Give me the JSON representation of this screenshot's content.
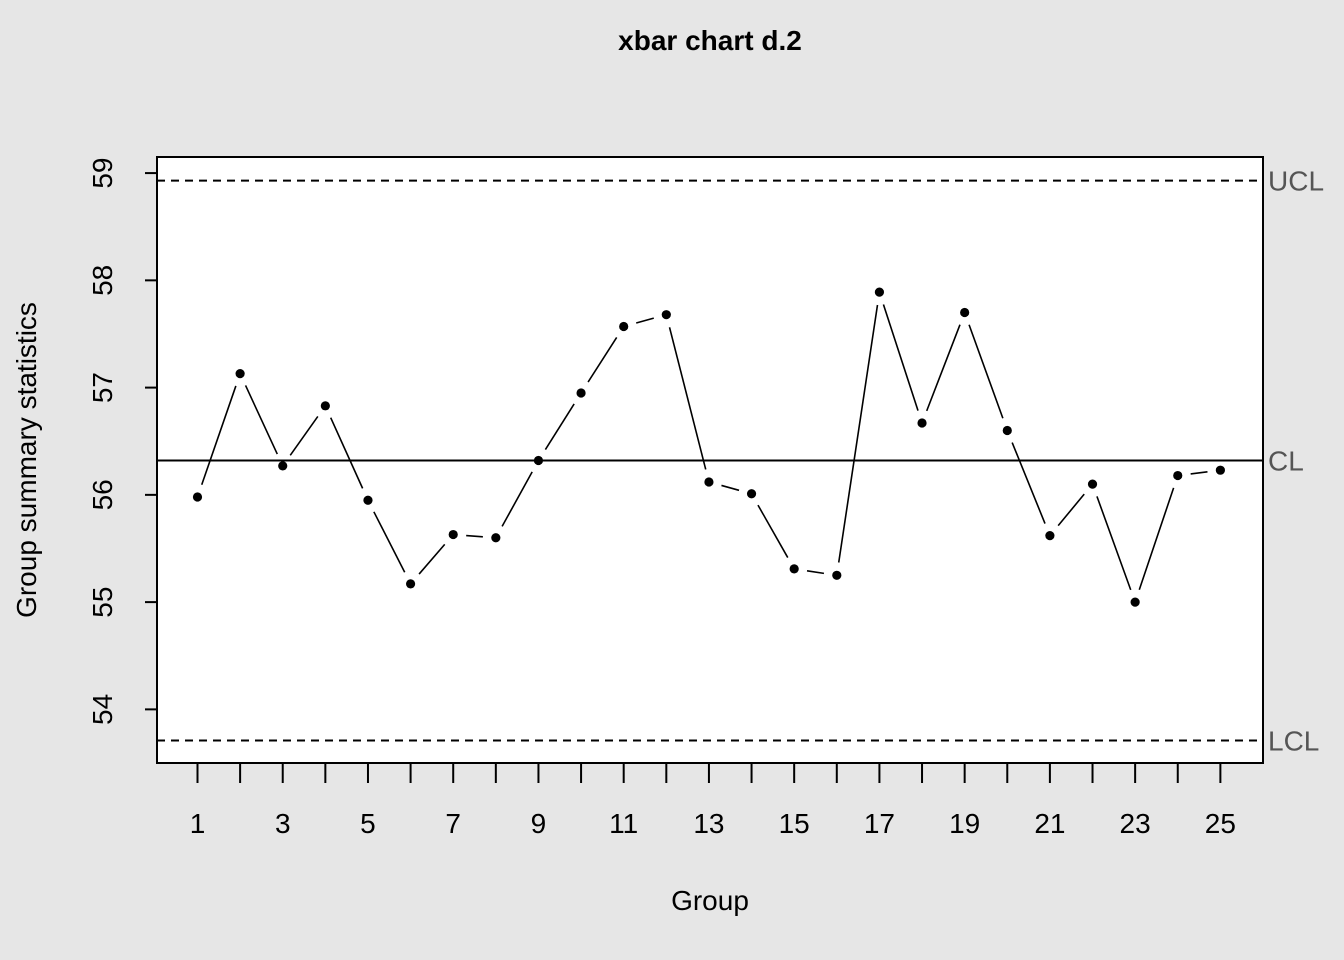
{
  "chart_data": {
    "type": "line",
    "title": "xbar chart d.2",
    "xlabel": "Group",
    "ylabel": "Group summary statistics",
    "x": [
      1,
      2,
      3,
      4,
      5,
      6,
      7,
      8,
      9,
      10,
      11,
      12,
      13,
      14,
      15,
      16,
      17,
      18,
      19,
      20,
      21,
      22,
      23,
      24,
      25
    ],
    "series": [
      {
        "values": [
          55.98,
          57.13,
          56.27,
          56.83,
          55.95,
          55.17,
          55.63,
          55.6,
          56.32,
          56.95,
          57.57,
          57.68,
          56.12,
          56.01,
          55.31,
          55.25,
          57.89,
          56.67,
          57.7,
          56.6,
          55.62,
          56.1,
          55.0,
          56.18,
          56.23
        ]
      }
    ],
    "limits": [
      {
        "label": "UCL",
        "value": 58.93,
        "style": "dashed"
      },
      {
        "label": "CL",
        "value": 56.32,
        "style": "solid"
      },
      {
        "label": "LCL",
        "value": 53.71,
        "style": "dashed"
      }
    ],
    "xlim": [
      0.05,
      26.0
    ],
    "ylim": [
      53.5,
      59.15
    ],
    "yticks": [
      54,
      55,
      56,
      57,
      58,
      59
    ],
    "xticks": [
      1,
      2,
      3,
      4,
      5,
      6,
      7,
      8,
      9,
      10,
      11,
      12,
      13,
      14,
      15,
      16,
      17,
      18,
      19,
      20,
      21,
      22,
      23,
      24,
      25
    ],
    "xtick_labels_shown": [
      1,
      3,
      5,
      7,
      9,
      11,
      13,
      15,
      17,
      19,
      21,
      23,
      25
    ],
    "grid": false,
    "legend": "none"
  }
}
